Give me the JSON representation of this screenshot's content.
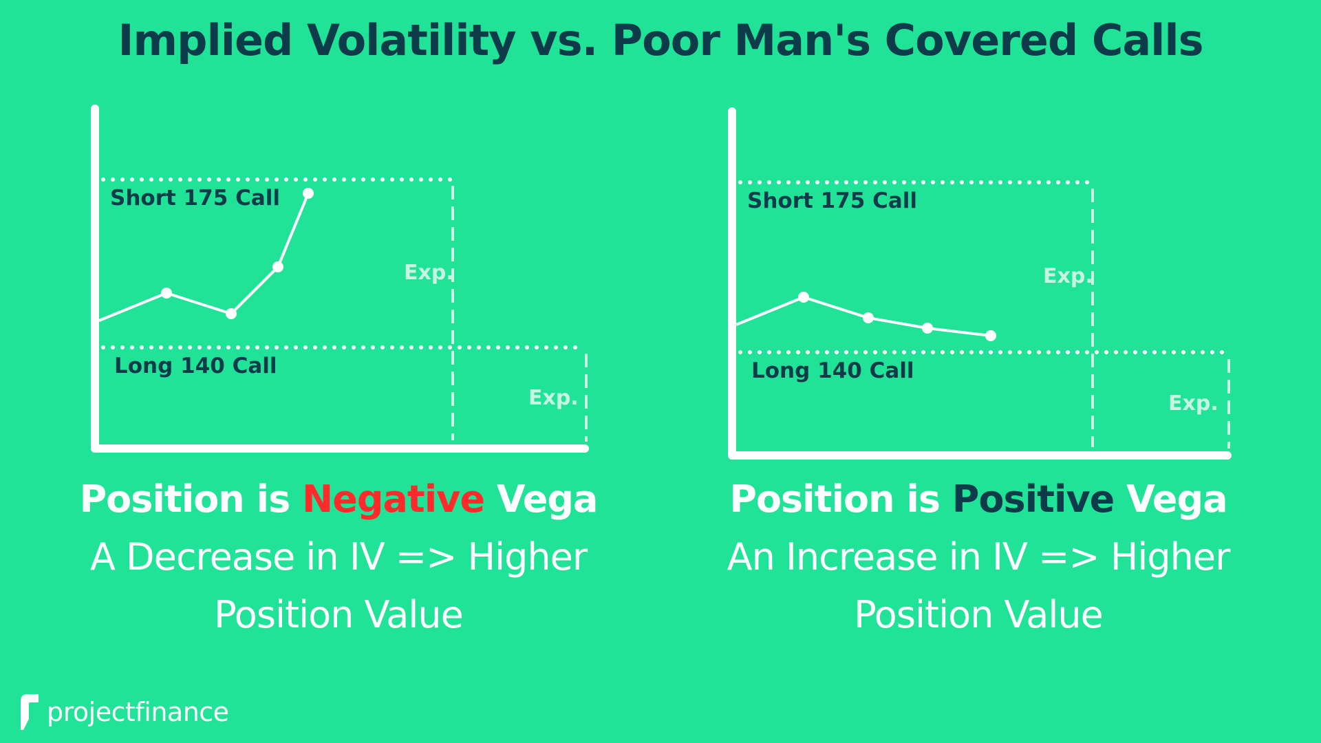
{
  "title": "Implied Volatility vs. Poor Man's Covered Calls",
  "panels": [
    {
      "short_label": "Short 175 Call",
      "long_label": "Long 140 Call",
      "exp_label_1": "Exp.",
      "exp_label_2": "Exp.",
      "caption": {
        "prefix": "Position is ",
        "highlight": "Negative",
        "suffix": " Vega",
        "line2": "A Decrease in IV => Higher",
        "line3": "Position Value"
      }
    },
    {
      "short_label": "Short 175 Call",
      "long_label": "Long 140 Call",
      "exp_label_1": "Exp.",
      "exp_label_2": "Exp.",
      "caption": {
        "prefix": "Position is ",
        "highlight": "Positive",
        "suffix": " Vega",
        "line2": "An Increase in IV => Higher",
        "line3": "Position Value"
      }
    }
  ],
  "logo": {
    "text_light": "project",
    "text_bold": "finance"
  },
  "colors": {
    "background": "#21e398",
    "title": "#0d3b4a",
    "negative": "#ff2a2a",
    "positive": "#0d3b4a",
    "faint": "#c8f5e1"
  }
}
